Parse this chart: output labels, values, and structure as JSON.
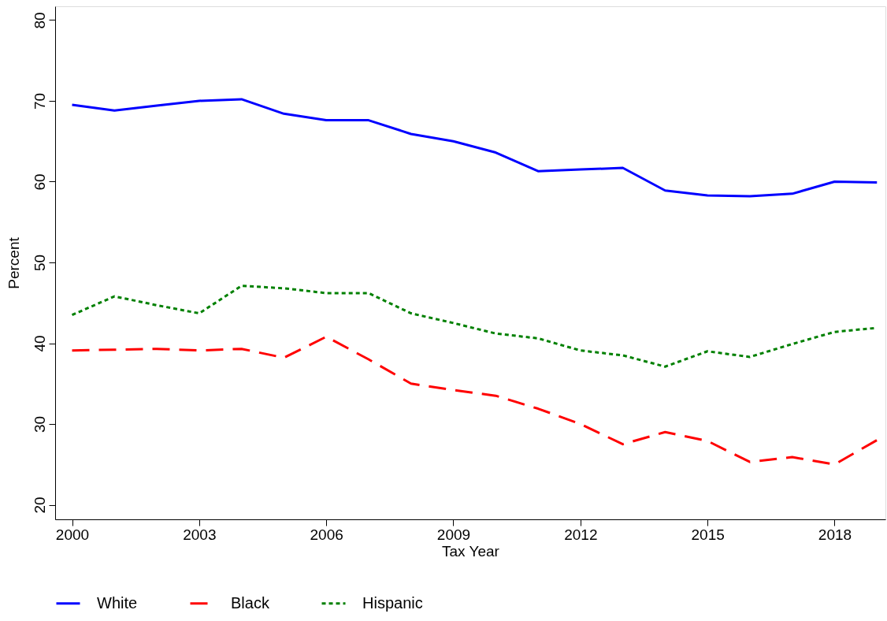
{
  "chart_data": {
    "type": "line",
    "xlabel": "Tax Year",
    "ylabel": "Percent",
    "x": [
      2000,
      2001,
      2002,
      2003,
      2004,
      2005,
      2006,
      2007,
      2008,
      2009,
      2010,
      2011,
      2012,
      2013,
      2014,
      2015,
      2016,
      2017,
      2018,
      2019
    ],
    "series": [
      {
        "name": "White",
        "color": "#0000ff",
        "line_style": "solid",
        "values": [
          69.5,
          68.8,
          69.4,
          70.0,
          70.2,
          68.4,
          67.6,
          67.6,
          65.9,
          65.0,
          63.6,
          61.3,
          61.5,
          61.7,
          58.9,
          58.3,
          58.2,
          58.5,
          60.0,
          59.9
        ]
      },
      {
        "name": "Black",
        "color": "#ff0000",
        "line_style": "dashed",
        "values": [
          39.1,
          39.2,
          39.3,
          39.1,
          39.3,
          38.2,
          40.8,
          38.0,
          35.0,
          34.2,
          33.5,
          31.9,
          30.0,
          27.5,
          29.0,
          27.9,
          25.3,
          25.9,
          25.0,
          28.0
        ]
      },
      {
        "name": "Hispanic",
        "color": "#008000",
        "line_style": "dotted",
        "values": [
          43.5,
          45.8,
          44.7,
          43.7,
          47.1,
          46.8,
          46.2,
          46.2,
          43.7,
          42.5,
          41.2,
          40.6,
          39.1,
          38.5,
          37.1,
          39.0,
          38.3,
          39.9,
          41.4,
          41.9
        ]
      }
    ],
    "xlim": [
      1999.6,
      2019.2
    ],
    "xticks": [
      2000,
      2003,
      2006,
      2009,
      2012,
      2015,
      2018
    ],
    "ylim": [
      18.2,
      81.7
    ],
    "yticks": [
      20,
      30,
      40,
      50,
      60,
      70,
      80
    ],
    "grid": false,
    "legend": "bottom",
    "marker": "none"
  }
}
